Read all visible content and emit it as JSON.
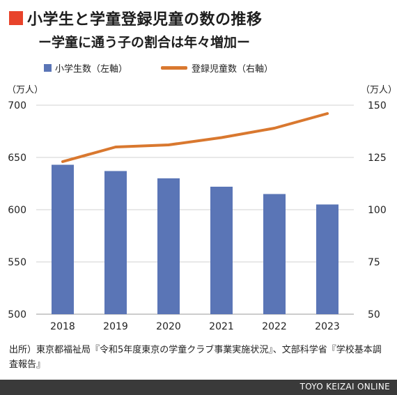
{
  "title": "小学生と学童登録児童の数の推移",
  "subtitle": "ー学童に通う子の割合は年々増加ー",
  "unit_left": "（万人）",
  "unit_right": "（万人）",
  "source": "出所）東京都福祉局『令和5年度東京の学童クラブ事業実施状況』、文部科学省『学校基本調査報告』",
  "footer": "TOYO KEIZAI ONLINE",
  "colors": {
    "bar": "#5a75b6",
    "line": "#d9782f",
    "accent": "#e8432b"
  },
  "chart_data": {
    "type": "bar+line",
    "categories": [
      "2018",
      "2019",
      "2020",
      "2021",
      "2022",
      "2023"
    ],
    "series": [
      {
        "name": "小学生数（左軸）",
        "type": "bar",
        "axis": "left",
        "values": [
          643,
          637,
          630,
          622,
          615,
          605
        ]
      },
      {
        "name": "登録児童数（右軸）",
        "type": "line",
        "axis": "right",
        "values": [
          123,
          130,
          131,
          134.5,
          139,
          146
        ]
      }
    ],
    "ylim_left": [
      500,
      700
    ],
    "yticks_left": [
      "500",
      "550",
      "600",
      "650",
      "700"
    ],
    "ylim_right": [
      50,
      150
    ],
    "yticks_right": [
      "50",
      "75",
      "100",
      "125",
      "150"
    ],
    "grid": true,
    "legend_position": "top"
  }
}
